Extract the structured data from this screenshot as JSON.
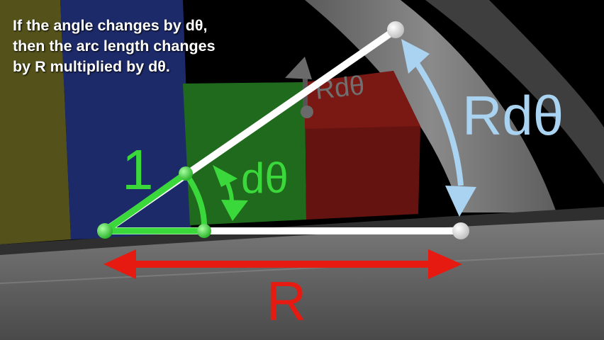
{
  "caption": {
    "lines": [
      "If the angle changes by dθ,",
      "then the arc length changes",
      "by R multiplied by dθ."
    ]
  },
  "labels": {
    "unit_radius": "1",
    "small_angle": "dθ",
    "block_arc": "Rdθ",
    "big_arc": "Rdθ",
    "radius": "R"
  },
  "colors": {
    "unit_green": "#3ad83a",
    "arc_blue": "#a9d3f0",
    "radius_red": "#e61a10",
    "block_yellow": "#54521a",
    "block_blue": "#1c2a6a",
    "block_green": "#1f6a1c",
    "block_red": "#651310",
    "rod_white": "#ffffff"
  }
}
